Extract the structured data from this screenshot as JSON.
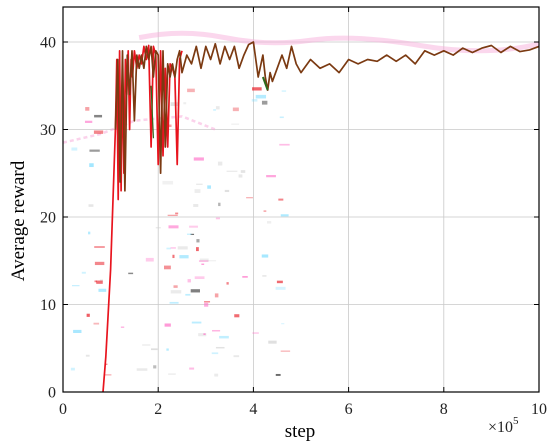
{
  "chart_data": {
    "type": "line",
    "title": "",
    "xlabel": "step",
    "ylabel": "Average reward",
    "x_multiplier_label": "×10",
    "x_multiplier_exponent": "5",
    "xlim": [
      0,
      10
    ],
    "ylim": [
      0,
      44
    ],
    "xticks": [
      0,
      2,
      4,
      6,
      8,
      10
    ],
    "yticks": [
      0,
      10,
      20,
      30,
      40
    ],
    "grid": true,
    "legend": "none",
    "colors": {
      "red": "#e8141e",
      "brown": "#7b3a12",
      "green": "#2d6b1e",
      "pink_noise": "#f7a6d8",
      "grid": "#c9c9c9"
    },
    "series": [
      {
        "color": "#e8141e",
        "x": [
          0.84,
          0.9,
          0.95,
          1.0,
          1.05,
          1.1,
          1.13,
          1.16,
          1.19,
          1.22,
          1.25,
          1.28,
          1.31,
          1.34,
          1.37,
          1.4,
          1.43,
          1.46,
          1.5,
          1.55,
          1.6,
          1.65,
          1.7,
          1.75,
          1.8,
          1.85,
          1.9,
          1.95,
          2.0,
          2.05,
          2.1,
          2.15,
          2.2,
          2.25,
          2.3,
          2.35,
          2.4,
          2.45,
          2.5
        ],
        "y": [
          0,
          4,
          9,
          14,
          22,
          30,
          38,
          22,
          39,
          23,
          37,
          25,
          38,
          34,
          39,
          30,
          38,
          36,
          39,
          37,
          38.5,
          37.5,
          39.5,
          38,
          39.6,
          28,
          39.5,
          38.5,
          26,
          39,
          27,
          37,
          28,
          37.5,
          37,
          36,
          26,
          38,
          39
        ]
      },
      {
        "color": "#7b3a12",
        "x": [
          1.1,
          1.15,
          1.2,
          1.25,
          1.3,
          1.35,
          1.4,
          1.45,
          1.5,
          1.55,
          1.6,
          1.65,
          1.7,
          1.75,
          1.8,
          1.85,
          1.9,
          1.95,
          2.0,
          2.05,
          2.1,
          2.15,
          2.2,
          2.25,
          2.3,
          2.35,
          2.4,
          2.45,
          2.5,
          2.6,
          2.7,
          2.8,
          2.9,
          3.0,
          3.1,
          3.2,
          3.3,
          3.4,
          3.5,
          3.6,
          3.7,
          3.8,
          3.9,
          4.0,
          4.1,
          4.2,
          4.25,
          4.3,
          4.35,
          4.4,
          4.5,
          4.6,
          4.7,
          4.8,
          4.9,
          5.0,
          5.2,
          5.4,
          5.6,
          5.8,
          6.0,
          6.2,
          6.4,
          6.6,
          6.8,
          7.0,
          7.2,
          7.4,
          7.6,
          7.8,
          8.0,
          8.2,
          8.4,
          8.6,
          8.8,
          9.0,
          9.2,
          9.4,
          9.6,
          9.8,
          10.0
        ],
        "y": [
          30,
          38,
          24,
          39,
          23,
          38.5,
          34,
          39,
          31,
          38.5,
          37,
          38.5,
          37,
          39.5,
          38,
          39.5,
          36,
          39,
          38.5,
          25,
          39,
          28,
          37.5,
          36,
          37.5,
          36,
          38,
          39,
          36.5,
          38.5,
          37.5,
          39.5,
          37,
          39.5,
          38,
          39.8,
          37.5,
          39.5,
          38,
          39.5,
          37,
          38.5,
          39.7,
          40,
          36,
          38.5,
          36,
          34.5,
          36.5,
          35.5,
          37,
          38.5,
          37,
          39.5,
          37.5,
          36.5,
          38,
          37,
          37.5,
          36.5,
          38,
          37.5,
          38,
          37.8,
          38.5,
          37.8,
          38.5,
          37.5,
          39,
          38.5,
          39,
          38.5,
          39.3,
          38.8,
          39.3,
          39.6,
          38.8,
          39.5,
          38.9,
          39.1,
          39.5
        ]
      }
    ]
  }
}
